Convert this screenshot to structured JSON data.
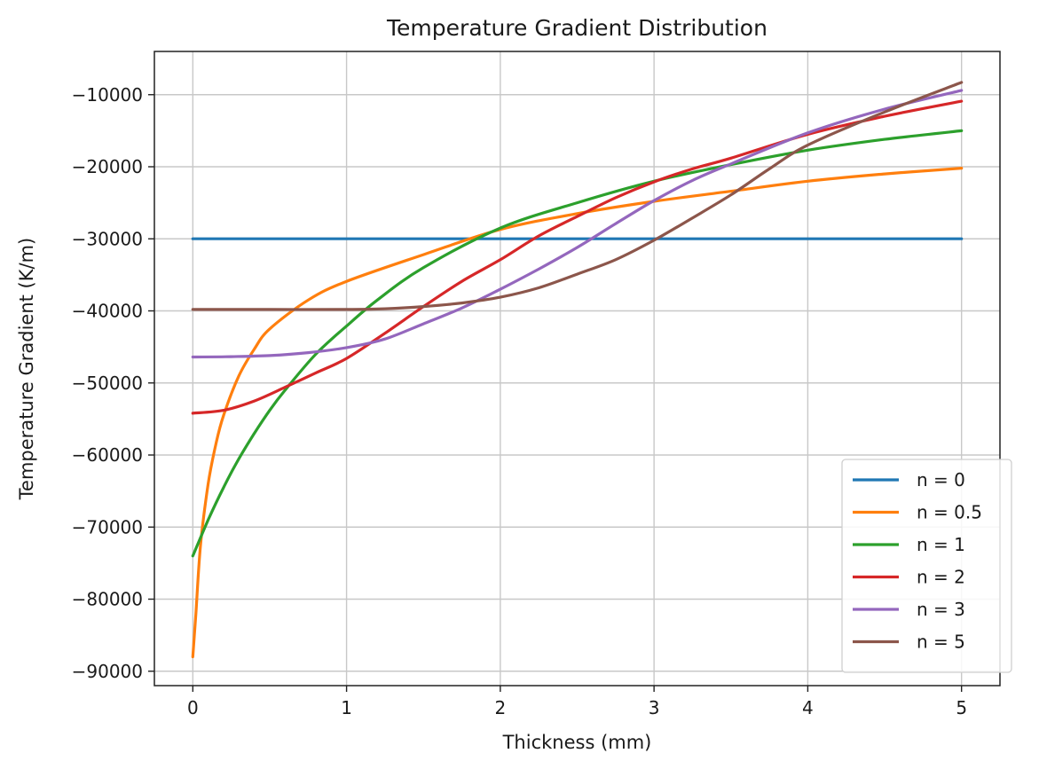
{
  "chart_data": {
    "type": "line",
    "title": "Temperature Gradient Distribution",
    "xlabel": "Thickness (mm)",
    "ylabel": "Temperature Gradient (K/m)",
    "xlim": [
      -0.25,
      5.25
    ],
    "ylim": [
      -92000,
      -4000
    ],
    "xticks": [
      0,
      1,
      2,
      3,
      4,
      5
    ],
    "yticks": [
      -90000,
      -80000,
      -70000,
      -60000,
      -50000,
      -40000,
      -30000,
      -20000,
      -10000
    ],
    "ytick_labels": [
      "−90000",
      "−80000",
      "−70000",
      "−60000",
      "−50000",
      "−40000",
      "−30000",
      "−20000",
      "−10000"
    ],
    "xtick_labels": [
      "0",
      "1",
      "2",
      "3",
      "4",
      "5"
    ],
    "grid": true,
    "legend_position": "lower-right",
    "series": [
      {
        "name": "n = 0",
        "color": "#1f77b4",
        "x": [
          0,
          5
        ],
        "y": [
          -30000,
          -30000
        ]
      },
      {
        "name": "n = 0.5",
        "color": "#ff7f0e",
        "x": [
          0,
          0.02,
          0.05,
          0.1,
          0.15,
          0.2,
          0.3,
          0.4,
          0.5,
          0.75,
          1,
          1.5,
          2,
          2.5,
          3,
          3.5,
          4,
          4.5,
          5
        ],
        "y": [
          -88000,
          -82000,
          -72500,
          -64000,
          -58500,
          -54500,
          -49000,
          -45300,
          -42500,
          -38500,
          -35900,
          -32200,
          -28700,
          -26500,
          -24800,
          -23400,
          -22000,
          -21000,
          -20200
        ]
      },
      {
        "name": "n = 1",
        "color": "#2ca02c",
        "x": [
          0,
          0.1,
          0.2,
          0.3,
          0.4,
          0.5,
          0.6,
          0.8,
          1,
          1.2,
          1.5,
          2,
          2.5,
          3,
          3.5,
          4,
          4.5,
          5
        ],
        "y": [
          -74000,
          -69000,
          -64500,
          -60500,
          -57000,
          -53800,
          -51000,
          -46000,
          -42100,
          -38500,
          -34000,
          -28500,
          -25000,
          -22000,
          -19700,
          -17700,
          -16200,
          -15000
        ]
      },
      {
        "name": "n = 2",
        "color": "#d62728",
        "x": [
          0,
          0.2,
          0.4,
          0.6,
          0.8,
          1,
          1.25,
          1.5,
          1.75,
          2,
          2.25,
          2.5,
          2.75,
          3,
          3.25,
          3.5,
          4,
          4.5,
          5
        ],
        "y": [
          -54200,
          -53800,
          -52500,
          -50600,
          -48600,
          -46600,
          -43100,
          -39400,
          -35900,
          -32900,
          -29600,
          -26900,
          -24300,
          -22100,
          -20300,
          -18800,
          -15500,
          -13000,
          -10900
        ]
      },
      {
        "name": "n = 3",
        "color": "#9467bd",
        "x": [
          0,
          0.25,
          0.5,
          0.75,
          1,
          1.25,
          1.5,
          1.75,
          2,
          2.25,
          2.5,
          2.75,
          3,
          3.25,
          3.5,
          4,
          4.5,
          5
        ],
        "y": [
          -46400,
          -46350,
          -46200,
          -45800,
          -45100,
          -43900,
          -41800,
          -39600,
          -37000,
          -34200,
          -31200,
          -27900,
          -24700,
          -21900,
          -19600,
          -15300,
          -12000,
          -9400
        ]
      },
      {
        "name": "n = 5",
        "color": "#8c564b",
        "x": [
          0,
          0.5,
          1,
          1.25,
          1.5,
          1.75,
          2,
          2.25,
          2.5,
          2.75,
          3,
          3.25,
          3.5,
          3.75,
          4,
          4.5,
          5
        ],
        "y": [
          -39800,
          -39800,
          -39800,
          -39700,
          -39400,
          -38900,
          -38100,
          -36800,
          -34900,
          -32900,
          -30200,
          -27100,
          -23900,
          -20300,
          -17000,
          -12400,
          -8300
        ]
      }
    ]
  }
}
